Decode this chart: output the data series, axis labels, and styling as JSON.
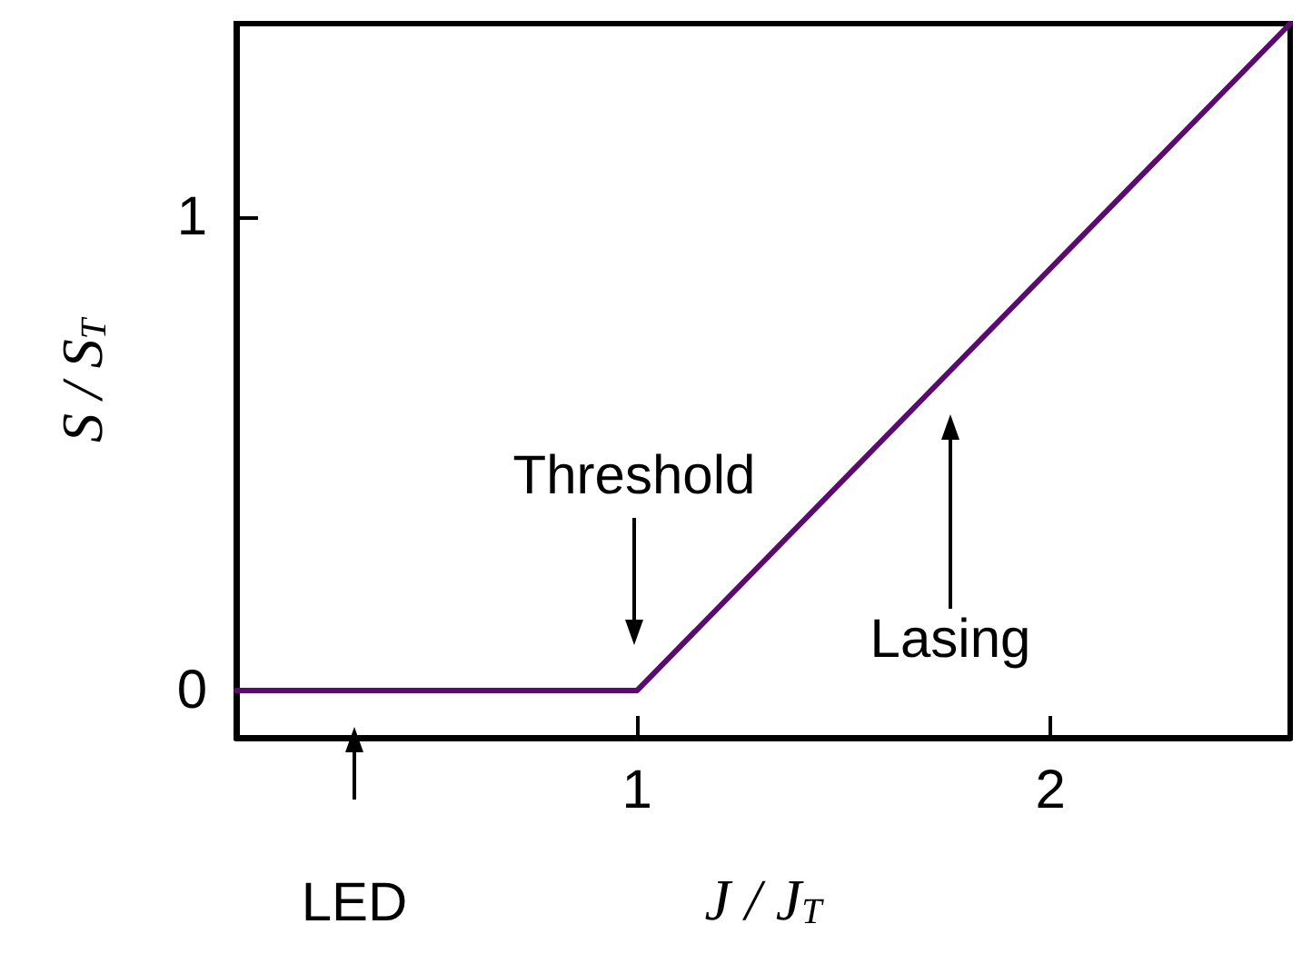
{
  "chart_data": {
    "type": "line",
    "xlabel": "J / J$_{T}$",
    "ylabel": "S / S$_{T}$",
    "x": [
      0.03,
      1,
      2.58
    ],
    "series": [
      {
        "color": "#5b0b6e",
        "values": [
          0,
          0,
          1.41
        ]
      }
    ],
    "xlim": [
      0.03,
      2.58
    ],
    "xticks": [
      1,
      2
    ],
    "ylim": [
      -0.1,
      1.41
    ],
    "yticks": [
      0,
      1
    ],
    "grid": false,
    "marker": "none",
    "line_style": "solid",
    "annotations": [
      "Threshold",
      "Lasing",
      "LED"
    ]
  }
}
